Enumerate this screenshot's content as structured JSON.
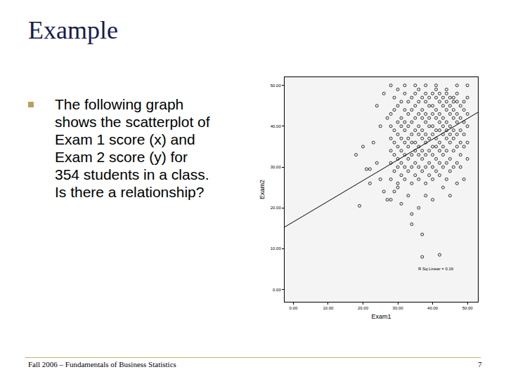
{
  "slide": {
    "title": "Example",
    "bullet": [
      "The following graph",
      "shows the scatterplot of",
      "Exam 1 score (x) and",
      "Exam 2 score (y) for",
      "354 students in a class.",
      "Is there a relationship?"
    ],
    "footer": "Fall 2006 – Fundamentals of Business Statistics",
    "page": "7"
  },
  "chart_data": {
    "type": "scatter",
    "x_label": "Exam1",
    "y_label": "Exam2",
    "xlim": [
      -2.5,
      53
    ],
    "ylim": [
      -3,
      52
    ],
    "xticks": [
      {
        "value": 0,
        "label": "0.00"
      },
      {
        "value": 10,
        "label": "10.00"
      },
      {
        "value": 20,
        "label": "20.00"
      },
      {
        "value": 30,
        "label": "30.00"
      },
      {
        "value": 40,
        "label": "40.00"
      },
      {
        "value": 50,
        "label": "50.00"
      }
    ],
    "yticks": [
      {
        "value": 0,
        "label": "0.00"
      },
      {
        "value": 10,
        "label": "10.00"
      },
      {
        "value": 20,
        "label": "20.00"
      },
      {
        "value": 30,
        "label": "30.00"
      },
      {
        "value": 40,
        "label": "40.00"
      },
      {
        "value": 50,
        "label": "50.00"
      }
    ],
    "grid": false,
    "annotations": [
      {
        "text": "R Sq Linear = 0.16",
        "x": 41,
        "y": 5
      }
    ],
    "series": [
      {
        "type": "scatter",
        "marker": "circle-open",
        "color": "#000000",
        "x": [
          19,
          21,
          22,
          18,
          20,
          23,
          24,
          22,
          25,
          27,
          28,
          34,
          34,
          37,
          37,
          42,
          26,
          29,
          30,
          31,
          33,
          36,
          38,
          40,
          43,
          45,
          47,
          49,
          50,
          48,
          25,
          24,
          27,
          26,
          28,
          30,
          32,
          35,
          38,
          41,
          44,
          47,
          50,
          50,
          49,
          46,
          28,
          28,
          28,
          28,
          28,
          28,
          29,
          29,
          29,
          29,
          29,
          29,
          30,
          30,
          30,
          30,
          30,
          30,
          30,
          31,
          31,
          31,
          31,
          31,
          31,
          31,
          32,
          32,
          32,
          32,
          32,
          32,
          32,
          32,
          33,
          33,
          33,
          33,
          33,
          33,
          33,
          34,
          34,
          34,
          34,
          34,
          34,
          34,
          34,
          35,
          35,
          35,
          35,
          35,
          35,
          35,
          35,
          36,
          36,
          36,
          36,
          36,
          36,
          36,
          36,
          36,
          37,
          37,
          37,
          37,
          37,
          37,
          37,
          37,
          38,
          38,
          38,
          38,
          38,
          38,
          38,
          38,
          38,
          39,
          39,
          39,
          39,
          39,
          39,
          39,
          39,
          40,
          40,
          40,
          40,
          40,
          40,
          40,
          40,
          40,
          41,
          41,
          41,
          41,
          41,
          41,
          41,
          41,
          41,
          42,
          42,
          42,
          42,
          42,
          42,
          42,
          42,
          42,
          43,
          43,
          43,
          43,
          43,
          43,
          43,
          43,
          44,
          44,
          44,
          44,
          44,
          44,
          44,
          44,
          44,
          45,
          45,
          45,
          45,
          45,
          45,
          45,
          45,
          46,
          46,
          46,
          46,
          46,
          46,
          46,
          47,
          47,
          47,
          47,
          47,
          47,
          47,
          48,
          48,
          48,
          48,
          48,
          49,
          49,
          49,
          49,
          50,
          50,
          50
        ],
        "values": [
          20.5,
          29.5,
          29.5,
          33,
          35,
          36,
          31,
          26,
          27,
          22,
          22,
          18.5,
          16,
          13.5,
          8,
          8.5,
          24,
          24,
          25,
          21,
          23,
          20,
          23,
          22,
          25,
          23,
          26,
          27,
          32,
          30,
          40,
          45,
          42,
          48,
          50,
          49,
          50,
          50,
          50,
          50,
          49,
          50,
          50,
          47,
          44,
          46,
          27,
          31,
          34,
          37,
          40,
          43,
          29,
          33,
          36,
          39,
          44,
          47,
          26,
          30,
          32,
          35,
          38,
          41,
          45,
          28,
          31,
          34,
          37,
          40,
          42,
          46,
          27,
          30,
          33,
          36,
          39,
          41,
          44,
          48,
          29,
          32,
          35,
          37,
          40,
          43,
          46,
          26,
          30,
          33,
          36,
          38,
          41,
          44,
          47,
          28,
          31,
          34,
          36,
          39,
          42,
          45,
          48,
          27,
          30,
          33,
          35,
          38,
          40,
          43,
          46,
          49,
          29,
          32,
          34,
          37,
          39,
          42,
          44,
          47,
          26,
          30,
          33,
          36,
          38,
          41,
          43,
          46,
          48,
          28,
          31,
          34,
          37,
          40,
          42,
          45,
          47,
          27,
          30,
          33,
          35,
          38,
          40,
          43,
          45,
          48,
          29,
          32,
          35,
          37,
          39,
          42,
          44,
          47,
          49,
          28,
          31,
          34,
          36,
          39,
          41,
          43,
          46,
          48,
          30,
          33,
          35,
          38,
          40,
          42,
          45,
          47,
          27,
          31,
          34,
          37,
          39,
          41,
          44,
          46,
          48,
          29,
          32,
          36,
          38,
          40,
          43,
          45,
          47,
          30,
          34,
          37,
          39,
          42,
          44,
          47,
          31,
          35,
          38,
          41,
          43,
          46,
          48,
          33,
          36,
          39,
          42,
          45,
          35,
          38,
          41,
          46,
          36,
          40,
          43
        ]
      },
      {
        "type": "line",
        "line_style": "solid",
        "color": "#000000",
        "x": [
          -2.5,
          53
        ],
        "values": [
          15.3,
          43.4
        ]
      }
    ]
  }
}
